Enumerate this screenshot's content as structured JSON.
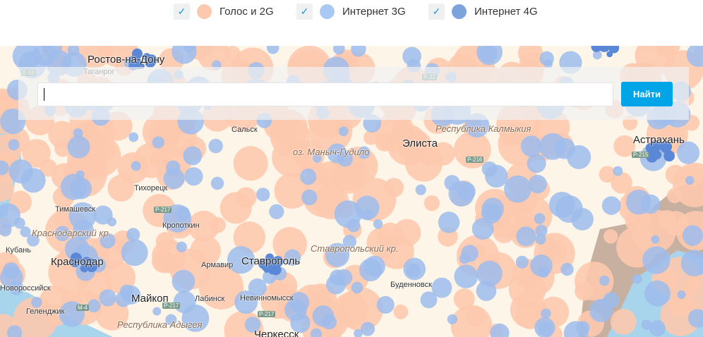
{
  "legend": [
    {
      "label": "Голос и 2G",
      "checked": true,
      "color": "#fdc9ae"
    },
    {
      "label": "Интернет 3G",
      "checked": true,
      "color": "#a9c9f4"
    },
    {
      "label": "Интернет 4G",
      "checked": true,
      "color": "#7ba3dc"
    }
  ],
  "search": {
    "value": "",
    "button": "Найти"
  },
  "map": {
    "cities": [
      {
        "name": "Ростов-на-Дону",
        "big": true
      },
      {
        "name": "Таганрог"
      },
      {
        "name": "Сальск"
      },
      {
        "name": "оз. Маныч-Гудило",
        "reg": true
      },
      {
        "name": "Элиста",
        "big": true
      },
      {
        "name": "Астрахань",
        "big": true
      },
      {
        "name": "Тихорецк"
      },
      {
        "name": "Тимашевск"
      },
      {
        "name": "Кропоткин"
      },
      {
        "name": "Кубань"
      },
      {
        "name": "Краснодар",
        "big": true
      },
      {
        "name": "Армавир"
      },
      {
        "name": "Ставрополь",
        "big": true
      },
      {
        "name": "Буденновск"
      },
      {
        "name": "Новороссийск"
      },
      {
        "name": "Геленджик"
      },
      {
        "name": "Майкоп",
        "big": true
      },
      {
        "name": "Лабинск"
      },
      {
        "name": "Невинномысск"
      },
      {
        "name": "Черкесск",
        "big": true
      }
    ],
    "regions": [
      "Республика Калмыкия",
      "Краснодарский кр.",
      "Ставропольский кр.",
      "Республика Адыгея"
    ],
    "roads": [
      "E-58",
      "P-22",
      "P-216",
      "P-215",
      "P-217",
      "P-217",
      "M-4",
      "P-217"
    ]
  }
}
